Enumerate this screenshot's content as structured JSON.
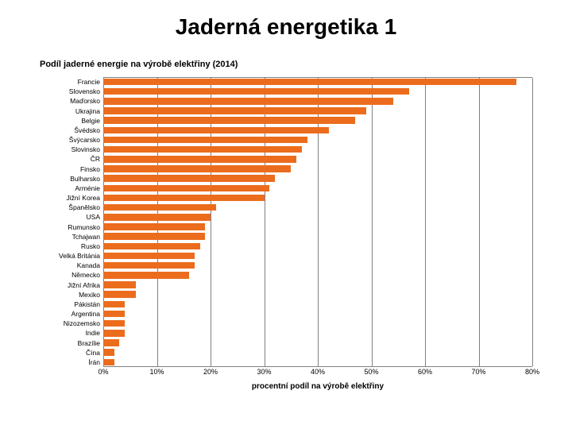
{
  "slide_title": "Jaderná energetika 1",
  "chart": {
    "type": "bar-horizontal",
    "title": "Podíl jaderné energie na výrobě elektřiny (2014)",
    "x_axis_title": "procentní podíl na výrobě elektřiny",
    "x_min": 0,
    "x_max": 80,
    "x_tick_step": 10,
    "x_tick_suffix": "%",
    "bar_color": "#ec6c1d",
    "grid_color": "#808080",
    "background_color": "#ffffff",
    "label_fontsize": 8.5,
    "tick_fontsize": 9,
    "title_fontsize": 11,
    "categories": [
      "Francie",
      "Slovensko",
      "Maďorsko",
      "Ukrajina",
      "Belgie",
      "Švédsko",
      "Švýcarsko",
      "Slovinsko",
      "ČR",
      "Finsko",
      "Bulharsko",
      "Arménie",
      "Jižní Korea",
      "Španělsko",
      "USA",
      "Rumunsko",
      "Tchajwan",
      "Rusko",
      "Velká Británia",
      "Kanada",
      "Německo",
      "Jižní Afrika",
      "Mexiko",
      "Pákistán",
      "Argentina",
      "Nizozemsko",
      "Indie",
      "Brazílie",
      "Čína",
      "Írán"
    ],
    "values": [
      77,
      57,
      54,
      49,
      47,
      42,
      38,
      37,
      36,
      35,
      32,
      31,
      30,
      21,
      20,
      19,
      19,
      18,
      17,
      17,
      16,
      6,
      6,
      4,
      4,
      4,
      4,
      3,
      2,
      2
    ]
  }
}
